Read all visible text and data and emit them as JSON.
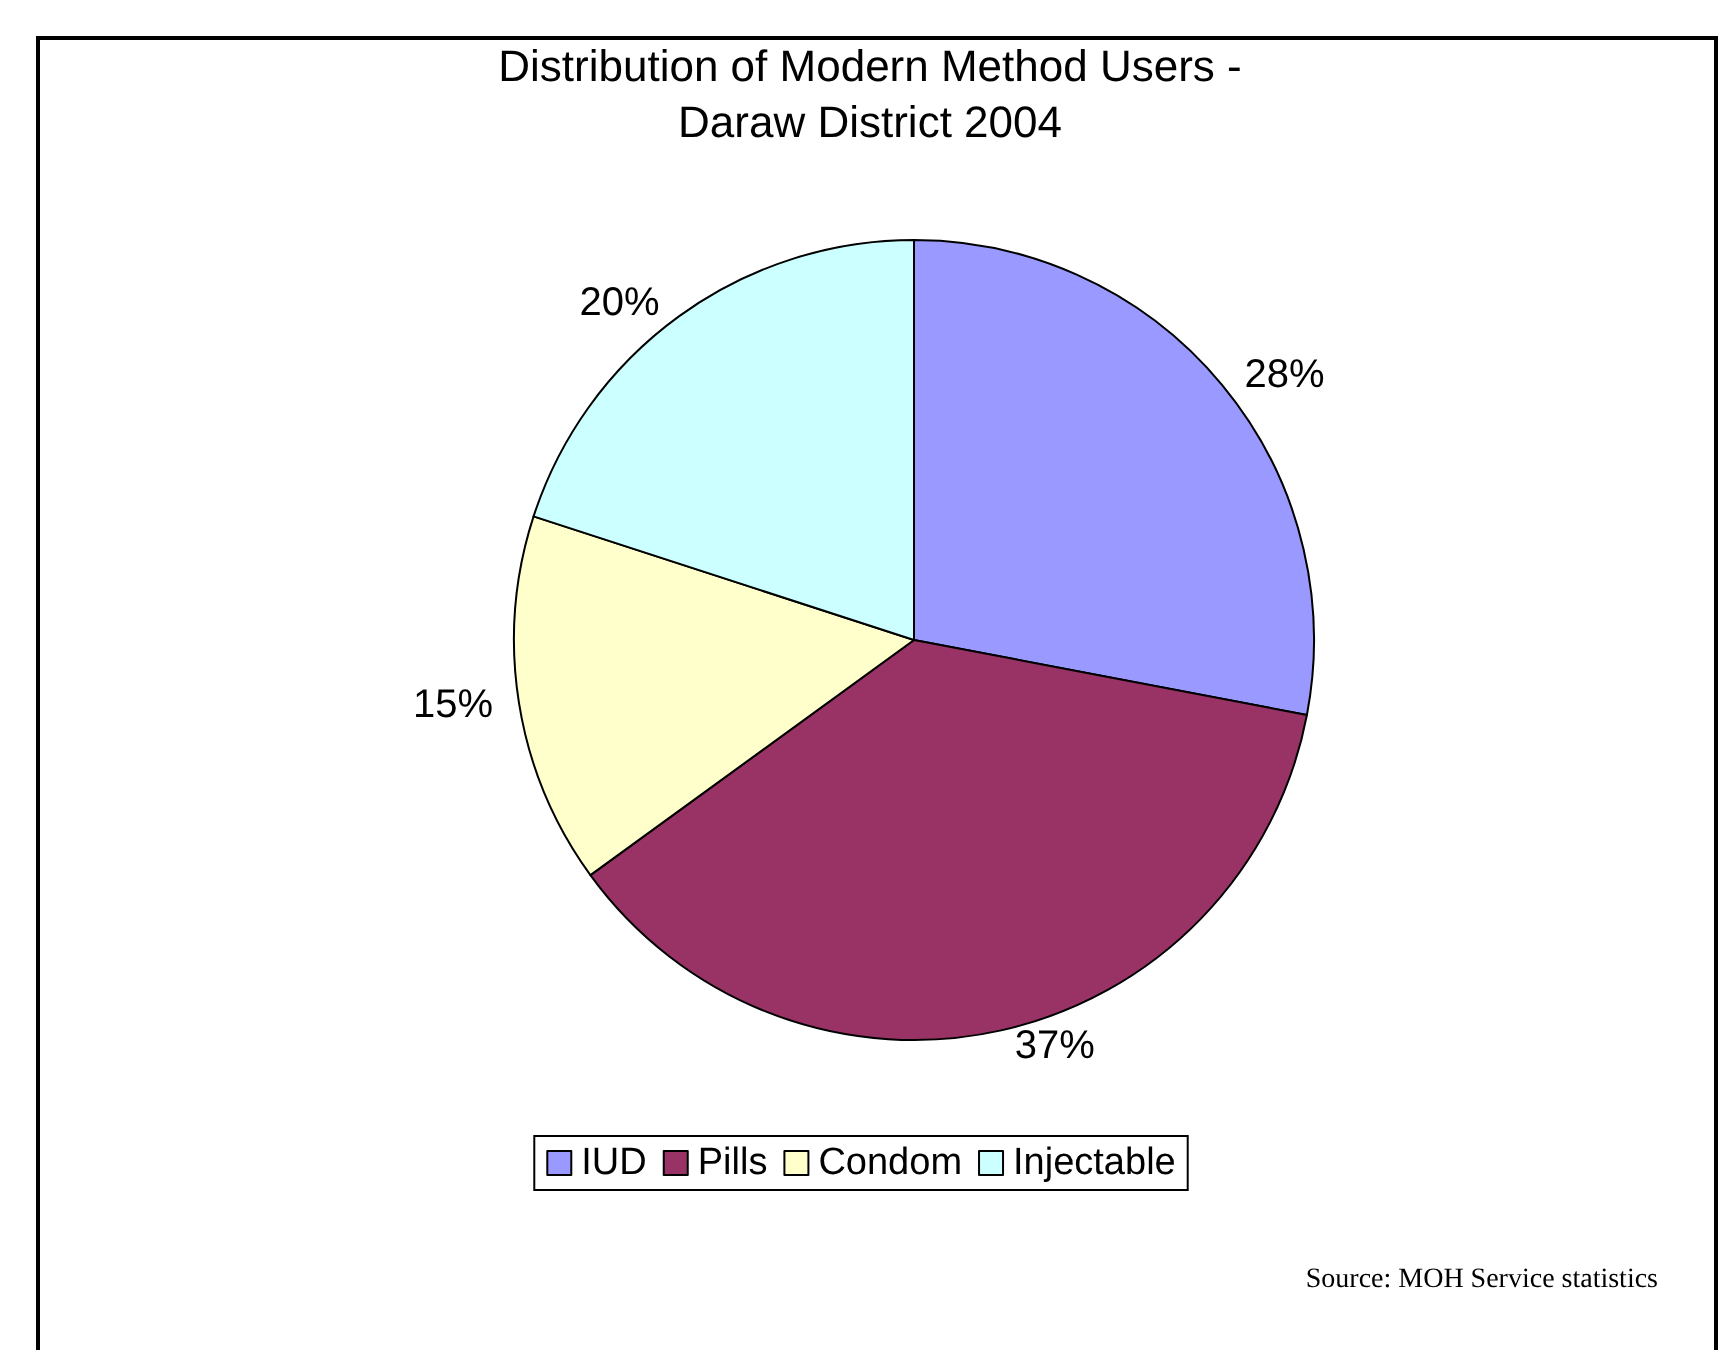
{
  "chart_data": {
    "type": "pie",
    "title": "Distribution of Modern Method Users -\nDaraw District 2004",
    "categories": [
      "IUD",
      "Pills",
      "Condom",
      "Injectable"
    ],
    "values": [
      28,
      37,
      15,
      20
    ],
    "colors": [
      "#9999ff",
      "#993366",
      "#ffffcc",
      "#ccffff"
    ],
    "value_labels": [
      "28%",
      "37%",
      "15%",
      "20%"
    ],
    "legend": "bottom",
    "annotations": [
      "Source: MOH Service statistics"
    ]
  }
}
